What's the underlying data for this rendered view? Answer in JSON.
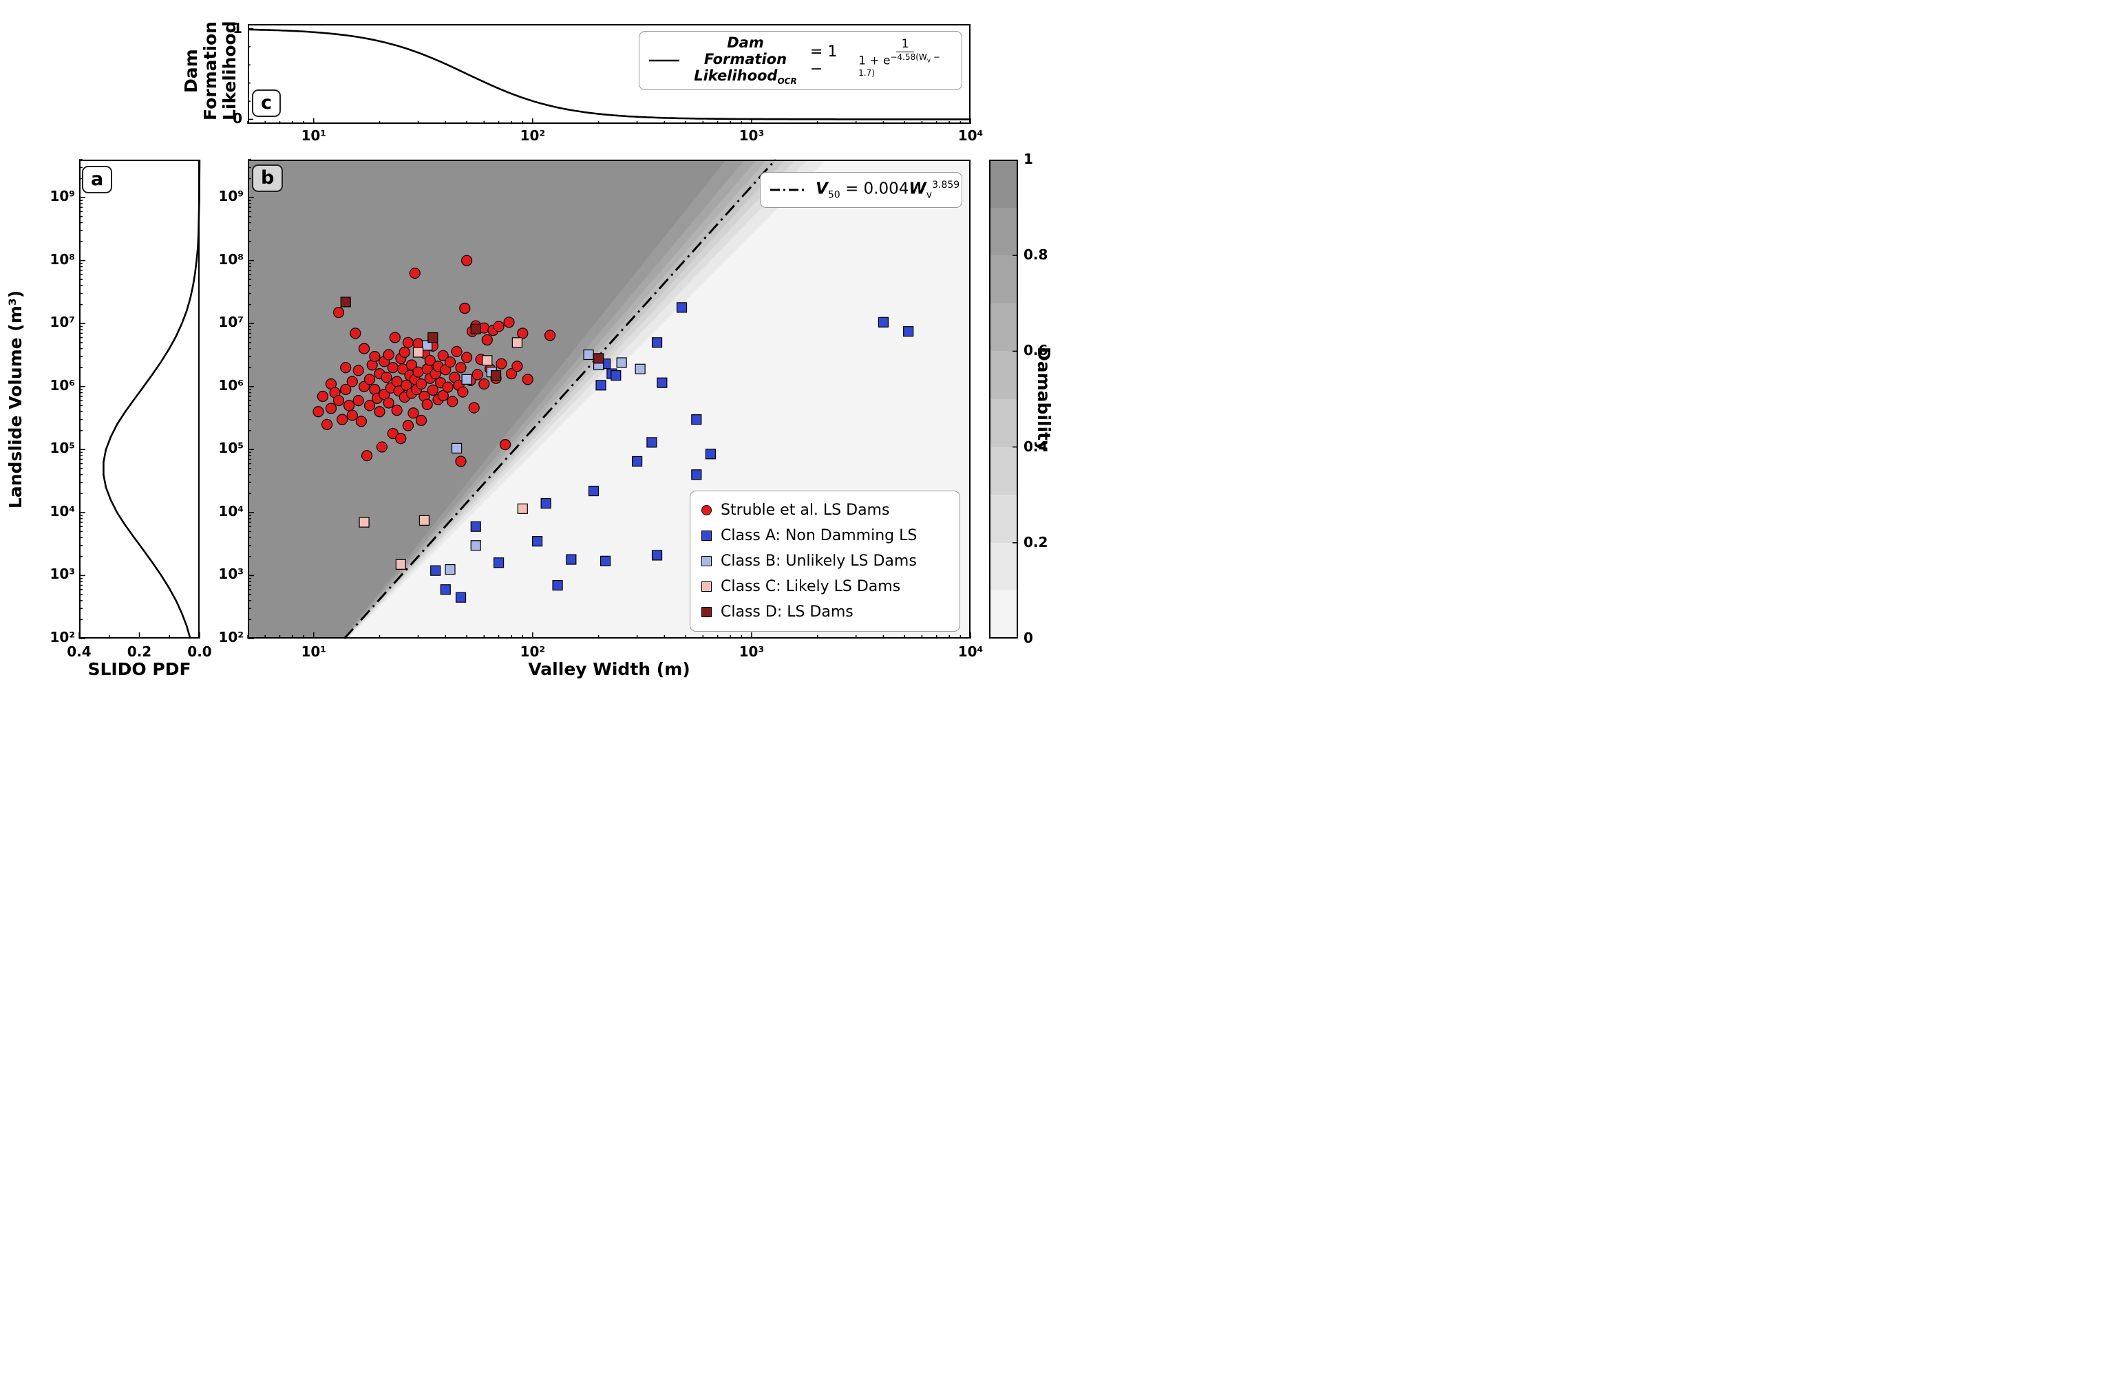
{
  "figure": {
    "panel_labels": {
      "a": "a",
      "b": "b",
      "c": "c"
    },
    "axes": {
      "b_xlabel": "Valley Width (m)",
      "a_xlabel": "SLIDO PDF",
      "a_ylabel": "Landslide Volume (m³)",
      "c_ylabel_line1": "Dam Formation",
      "c_ylabel_line2": "Likelihood",
      "colorbar_label": "Damability",
      "x_tick_labels": [
        "10¹",
        "10²",
        "10³",
        "10⁴"
      ],
      "x_tick_exponents": [
        1,
        2,
        3,
        4
      ],
      "y_tick_labels": [
        "10²",
        "10³",
        "10⁴",
        "10⁵",
        "10⁶",
        "10⁷",
        "10⁸",
        "10⁹"
      ],
      "y_tick_exponents": [
        2,
        3,
        4,
        5,
        6,
        7,
        8,
        9
      ],
      "a_x_tick_labels": [
        "0.4",
        "0.2",
        "0.0"
      ],
      "a_x_tick_values": [
        0.4,
        0.2,
        0.0
      ],
      "c_y_tick_labels": [
        "1",
        "0"
      ],
      "c_y_tick_values": [
        1,
        0
      ],
      "colorbar_tick_labels": [
        "0",
        "0.2",
        "0.4",
        "0.6",
        "0.8",
        "1"
      ],
      "colorbar_tick_values": [
        0,
        0.2,
        0.4,
        0.6,
        0.8,
        1
      ]
    },
    "legend_b": {
      "items": [
        {
          "key": "struble",
          "marker": "circle",
          "color": "#e31a1c",
          "label": "Struble et al. LS Dams"
        },
        {
          "key": "classA",
          "marker": "square",
          "color": "#3347d1",
          "label": "Class A: Non Damming LS"
        },
        {
          "key": "classB",
          "marker": "square",
          "color": "#aab8e8",
          "label": "Class B: Unlikely LS Dams"
        },
        {
          "key": "classC",
          "marker": "square",
          "color": "#f3c0b6",
          "label": "Class C: Likely LS Dams"
        },
        {
          "key": "classD",
          "marker": "square",
          "color": "#7f1d1d",
          "label": "Class D: LS Dams"
        }
      ]
    },
    "v50_equation": {
      "lhs": "V",
      "lhs_sub": "50",
      "rhs_pre": " = 0.004",
      "base": "W",
      "base_sub": "v",
      "exponent": "3.859"
    },
    "c_equation": {
      "name_line1": "Dam Formation",
      "name_line2": "Likelihood",
      "name_sub": "OCR",
      "rhs_pre": "= 1 −",
      "numerator": "1",
      "den_pre": "1 + e",
      "exp_pre": "−4.58(W",
      "exp_sub": "v",
      "exp_post": " − 1.7)"
    }
  },
  "chart_data": [
    {
      "id": "a",
      "type": "line",
      "xlabel": "SLIDO PDF",
      "ylabel": "Landslide Volume (m³)",
      "xlim": [
        0.4,
        0.0
      ],
      "x_reversed": true,
      "ylim": [
        100,
        4000000000.0
      ],
      "y_log": true,
      "curve": {
        "log10_volume": [
          2.0,
          2.2,
          2.4,
          2.6,
          2.8,
          3.0,
          3.2,
          3.4,
          3.6,
          3.8,
          4.0,
          4.2,
          4.4,
          4.6,
          4.8,
          5.0,
          5.2,
          5.4,
          5.6,
          5.8,
          6.0,
          6.2,
          6.4,
          6.6,
          6.8,
          7.0,
          7.2,
          7.4,
          7.6,
          7.8,
          8.0,
          8.2,
          8.4,
          8.6,
          8.8,
          9.0,
          9.2,
          9.4,
          9.6
        ],
        "pdf": [
          0.031,
          0.043,
          0.059,
          0.078,
          0.101,
          0.127,
          0.156,
          0.186,
          0.217,
          0.247,
          0.274,
          0.295,
          0.311,
          0.319,
          0.319,
          0.311,
          0.295,
          0.274,
          0.247,
          0.217,
          0.186,
          0.156,
          0.127,
          0.101,
          0.078,
          0.059,
          0.043,
          0.031,
          0.022,
          0.015,
          0.01,
          0.006,
          0.004,
          0.003,
          0.002,
          0.001,
          0.001,
          0.0005,
          0.0003
        ]
      }
    },
    {
      "id": "b",
      "type": "scatter",
      "xlabel": "Valley Width (m)",
      "ylabel": "Landslide Volume (m³)",
      "xlim": [
        5,
        10000
      ],
      "ylim": [
        100,
        4000000000.0
      ],
      "x_log": true,
      "y_log": true,
      "v50_line": {
        "coefficient": 0.004,
        "exponent": 3.859,
        "style": "dashdot",
        "color": "#000000",
        "label": "V50 = 0.004 Wv^3.859"
      },
      "background": {
        "meaning": "Damability",
        "low_color": "#f4f4f4",
        "high_color": "#909090",
        "bands": 10,
        "sigmoid_scale_base": 0.005,
        "sigmoid_scale_per_decade": 0.013
      },
      "series": [
        {
          "key": "struble",
          "name": "Struble et al. LS Dams",
          "marker": "circle",
          "color": "#e31a1c",
          "points": [
            [
              10.5,
              400000.0
            ],
            [
              11,
              700000.0
            ],
            [
              11.5,
              250000.0
            ],
            [
              12,
              1100000.0
            ],
            [
              12,
              450000.0
            ],
            [
              12.5,
              800000.0
            ],
            [
              13,
              15000000.0
            ],
            [
              13,
              600000.0
            ],
            [
              13.5,
              300000.0
            ],
            [
              14,
              900000.0
            ],
            [
              14,
              2000000.0
            ],
            [
              14.5,
              500000.0
            ],
            [
              15,
              1200000.0
            ],
            [
              15,
              350000.0
            ],
            [
              15.5,
              7000000.0
            ],
            [
              16,
              1800000.0
            ],
            [
              16,
              600000.0
            ],
            [
              16.5,
              280000.0
            ],
            [
              17,
              1000000.0
            ],
            [
              17,
              4000000.0
            ],
            [
              17.5,
              80000.0
            ],
            [
              18,
              1300000.0
            ],
            [
              18,
              500000.0
            ],
            [
              18.5,
              2200000.0
            ],
            [
              19,
              900000.0
            ],
            [
              19,
              3000000.0
            ],
            [
              19.5,
              650000.0
            ],
            [
              20,
              1600000.0
            ],
            [
              20,
              400000.0
            ],
            [
              20.5,
              110000.0
            ],
            [
              21,
              2500000.0
            ],
            [
              21,
              750000.0
            ],
            [
              21.5,
              1400000.0
            ],
            [
              22,
              550000.0
            ],
            [
              22,
              3200000.0
            ],
            [
              22.5,
              950000.0
            ],
            [
              23,
              180000.0
            ],
            [
              23,
              2000000.0
            ],
            [
              23.5,
              6000000.0
            ],
            [
              24,
              1200000.0
            ],
            [
              24,
              420000.0
            ],
            [
              24.5,
              850000.0
            ],
            [
              25,
              2800000.0
            ],
            [
              25,
              150000.0
            ],
            [
              25.5,
              1900000.0
            ],
            [
              26,
              680000.0
            ],
            [
              26,
              3500000.0
            ],
            [
              26.5,
              1050000.0
            ],
            [
              27,
              240000.0
            ],
            [
              27,
              5000000.0
            ],
            [
              27.5,
              1500000.0
            ],
            [
              28,
              780000.0
            ],
            [
              28,
              2200000.0
            ],
            [
              28.5,
              380000.0
            ],
            [
              29,
              1300000.0
            ],
            [
              29,
              63000000.0
            ],
            [
              29.5,
              900000.0
            ],
            [
              30,
              4800000.0
            ],
            [
              30,
              1700000.0
            ],
            [
              31,
              290000.0
            ],
            [
              31,
              1100000.0
            ],
            [
              32,
              700000.0
            ],
            [
              32,
              3400000.0
            ],
            [
              33,
              1900000.0
            ],
            [
              33,
              520000.0
            ],
            [
              34,
              1350000.0
            ],
            [
              34,
              2600000.0
            ],
            [
              35,
              880000.0
            ],
            [
              35,
              4400000.0
            ],
            [
              36,
              1600000.0
            ],
            [
              37,
              620000.0
            ],
            [
              37,
              2100000.0
            ],
            [
              38,
              1150000.0
            ],
            [
              39,
              3100000.0
            ],
            [
              39,
              720000.0
            ],
            [
              40,
              1850000.0
            ],
            [
              41,
              980000.0
            ],
            [
              42,
              2450000.0
            ],
            [
              43,
              580000.0
            ],
            [
              44,
              1400000.0
            ],
            [
              45,
              3600000.0
            ],
            [
              46,
              1050000.0
            ],
            [
              47,
              65000.0
            ],
            [
              47,
              2000000.0
            ],
            [
              48,
              820000.0
            ],
            [
              49,
              17500000.0
            ],
            [
              50,
              100000000.0
            ],
            [
              50,
              2900000.0
            ],
            [
              52,
              1250000.0
            ],
            [
              53,
              7500000.0
            ],
            [
              54,
              460000.0
            ],
            [
              55,
              9200000.0
            ],
            [
              56,
              1550000.0
            ],
            [
              58,
              2700000.0
            ],
            [
              60,
              8500000.0
            ],
            [
              60,
              1100000.0
            ],
            [
              62,
              5500000.0
            ],
            [
              64,
              1900000.0
            ],
            [
              66,
              7800000.0
            ],
            [
              68,
              1350000.0
            ],
            [
              70,
              9000000.0
            ],
            [
              72,
              2300000.0
            ],
            [
              75,
              120000.0
            ],
            [
              78,
              10500000.0
            ],
            [
              80,
              1600000.0
            ],
            [
              85,
              2100000.0
            ],
            [
              90,
              7000000.0
            ],
            [
              95,
              1300000.0
            ],
            [
              120,
              6500000.0
            ]
          ]
        },
        {
          "key": "classA",
          "name": "Class A: Non Damming LS",
          "marker": "square",
          "color": "#3347d1",
          "points": [
            [
              480,
              18000000.0
            ],
            [
              4000,
              10500000.0
            ],
            [
              5200,
              7500000.0
            ],
            [
              370,
              5000000.0
            ],
            [
              215,
              2300000.0
            ],
            [
              230,
              1600000.0
            ],
            [
              240,
              1500000.0
            ],
            [
              205,
              1050000.0
            ],
            [
              390,
              1150000.0
            ],
            [
              560,
              300000.0
            ],
            [
              350,
              130000.0
            ],
            [
              650,
              85000.0
            ],
            [
              300,
              65000.0
            ],
            [
              560,
              40000.0
            ],
            [
              190,
              22000.0
            ],
            [
              115,
              14000.0
            ],
            [
              55,
              6000.0
            ],
            [
              105,
              3500.0
            ],
            [
              150,
              1800.0
            ],
            [
              215,
              1700.0
            ],
            [
              370,
              2100.0
            ],
            [
              70,
              1600.0
            ],
            [
              36,
              1200.0
            ],
            [
              130,
              700.0
            ],
            [
              40,
              600.0
            ],
            [
              47,
              450.0
            ]
          ]
        },
        {
          "key": "classB",
          "name": "Class B: Unlikely LS Dams",
          "marker": "square",
          "color": "#aab8e8",
          "points": [
            [
              180,
              3200000.0
            ],
            [
              200,
              2200000.0
            ],
            [
              255,
              2400000.0
            ],
            [
              310,
              1900000.0
            ],
            [
              65,
              1700000.0
            ],
            [
              50,
              1300000.0
            ],
            [
              33,
              4500000.0
            ],
            [
              45,
              105000.0
            ],
            [
              55,
              3000.0
            ],
            [
              42,
              1250.0
            ]
          ]
        },
        {
          "key": "classC",
          "name": "Class C: Likely LS Dams",
          "marker": "square",
          "color": "#f3c0b6",
          "points": [
            [
              85,
              5000000.0
            ],
            [
              62,
              2600000.0
            ],
            [
              30,
              3500000.0
            ],
            [
              17,
              7000.0
            ],
            [
              32,
              7500.0
            ],
            [
              90,
              11500.0
            ],
            [
              25,
              1500.0
            ]
          ]
        },
        {
          "key": "classD",
          "name": "Class D: LS Dams",
          "marker": "square",
          "color": "#7f1d1d",
          "points": [
            [
              14,
              22000000.0
            ],
            [
              35,
              6000000.0
            ],
            [
              55,
              8200000.0
            ],
            [
              68,
              1500000.0
            ],
            [
              200,
              2800000.0
            ]
          ]
        }
      ]
    },
    {
      "id": "c",
      "type": "line",
      "ylabel": "Dam Formation Likelihood",
      "ylim": [
        0,
        1
      ],
      "xlim": [
        5,
        10000
      ],
      "x_log": true,
      "curve_formula": "Dam Formation Likelihood_OCR = 1 − 1/(1 + e^(−4.58(Wv − 1.7)))",
      "params": {
        "k": 4.58,
        "x0_log10": 1.7
      }
    },
    {
      "id": "colorbar",
      "label": "Damability",
      "range": [
        0,
        1
      ],
      "ticks": [
        0,
        0.2,
        0.4,
        0.6,
        0.8,
        1
      ],
      "bands": 10,
      "low_color": "#f4f4f4",
      "high_color": "#909090"
    }
  ]
}
